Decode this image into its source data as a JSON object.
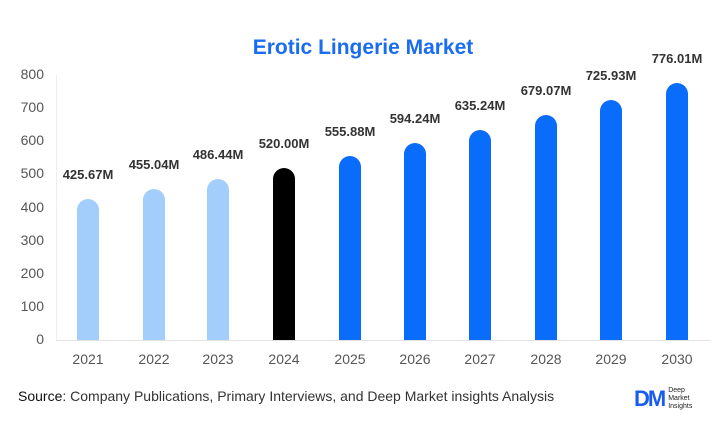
{
  "chart_data": {
    "type": "bar",
    "title": "Erotic Lingerie Market",
    "xlabel": "",
    "ylabel": "",
    "ylim": [
      0,
      800
    ],
    "yticks": [
      0,
      100,
      200,
      300,
      400,
      500,
      600,
      700,
      800
    ],
    "categories": [
      "2021",
      "2022",
      "2023",
      "2024",
      "2025",
      "2026",
      "2027",
      "2028",
      "2029",
      "2030"
    ],
    "values": [
      425.67,
      455.04,
      486.44,
      520.0,
      555.88,
      594.24,
      635.24,
      679.07,
      725.93,
      776.01
    ],
    "labels": [
      "425.67M",
      "455.04M",
      "486.44M",
      "520.00M",
      "555.88M",
      "594.24M",
      "635.24M",
      "679.07M",
      "725.93M",
      "776.01M"
    ],
    "colors": [
      "#a3cdfb",
      "#a3cdfb",
      "#a3cdfb",
      "#000000",
      "#0a6cfa",
      "#0a6cfa",
      "#0a6cfa",
      "#0a6cfa",
      "#0a6cfa",
      "#0a6cfa"
    ],
    "grid": false,
    "legend": null
  },
  "footer": {
    "source_label": "Source",
    "source_text": ": Company Publications, Primary Interviews, and Deep Market insights Analysis",
    "logo_mark": "DM",
    "logo_line1": "Deep",
    "logo_line2": "Market",
    "logo_line3": "Insights"
  }
}
